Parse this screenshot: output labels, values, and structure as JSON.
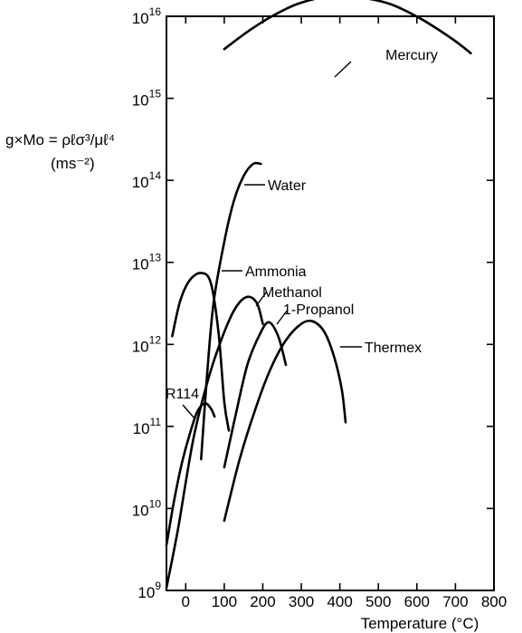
{
  "chart_data": {
    "type": "line",
    "xlabel": "Temperature (°C)",
    "ylabel_line1": "g×Mo = ρℓσ³/μℓ⁴",
    "ylabel_line2": "(ms⁻²)",
    "x_ticks": [
      "0",
      "100",
      "200",
      "300",
      "400",
      "500",
      "600",
      "700",
      "800"
    ],
    "y_ticks": [
      {
        "base": "10",
        "exp": "9"
      },
      {
        "base": "10",
        "exp": "10"
      },
      {
        "base": "10",
        "exp": "11"
      },
      {
        "base": "10",
        "exp": "12"
      },
      {
        "base": "10",
        "exp": "13"
      },
      {
        "base": "10",
        "exp": "14"
      },
      {
        "base": "10",
        "exp": "15"
      },
      {
        "base": "10",
        "exp": "16"
      }
    ],
    "xlim": [
      -50,
      800
    ],
    "ylim_log10": [
      9,
      16
    ],
    "y_scale": "log",
    "grid": false,
    "legend": "none (curves labeled directly)",
    "series": [
      {
        "name": "Mercury",
        "points": [
          [
            100,
            15.6
          ],
          [
            160,
            15.81
          ],
          [
            220,
            15.99
          ],
          [
            290,
            16.15
          ],
          [
            370,
            16.24
          ],
          [
            450,
            16.23
          ],
          [
            530,
            16.15
          ],
          [
            610,
            15.97
          ],
          [
            690,
            15.73
          ],
          [
            740,
            15.55
          ]
        ]
      },
      {
        "name": "Water",
        "points": [
          [
            40,
            10.6
          ],
          [
            55,
            11.6
          ],
          [
            72,
            12.5
          ],
          [
            100,
            13.25
          ],
          [
            125,
            13.75
          ],
          [
            150,
            14.05
          ],
          [
            175,
            14.2
          ],
          [
            195,
            14.2
          ]
        ]
      },
      {
        "name": "Ammonia",
        "points": [
          [
            -35,
            12.1
          ],
          [
            -15,
            12.52
          ],
          [
            10,
            12.78
          ],
          [
            40,
            12.87
          ],
          [
            65,
            12.75
          ],
          [
            85,
            12.15
          ],
          [
            100,
            11.3
          ],
          [
            112,
            10.95
          ]
        ]
      },
      {
        "name": "Methanol",
        "points": [
          [
            -50,
            9.03
          ],
          [
            -20,
            9.75
          ],
          [
            20,
            10.85
          ],
          [
            60,
            11.6
          ],
          [
            100,
            12.15
          ],
          [
            130,
            12.45
          ],
          [
            160,
            12.58
          ],
          [
            185,
            12.5
          ],
          [
            200,
            12.25
          ]
        ]
      },
      {
        "name": "1-Propanol",
        "points": [
          [
            100,
            10.5
          ],
          [
            130,
            11.15
          ],
          [
            160,
            11.75
          ],
          [
            190,
            12.1
          ],
          [
            215,
            12.27
          ],
          [
            240,
            12.1
          ],
          [
            260,
            11.75
          ]
        ]
      },
      {
        "name": "Thermex",
        "points": [
          [
            100,
            9.85
          ],
          [
            140,
            10.6
          ],
          [
            180,
            11.2
          ],
          [
            220,
            11.7
          ],
          [
            260,
            12.05
          ],
          [
            300,
            12.25
          ],
          [
            330,
            12.28
          ],
          [
            360,
            12.15
          ],
          [
            385,
            11.85
          ],
          [
            405,
            11.45
          ],
          [
            415,
            11.05
          ]
        ]
      },
      {
        "name": "R114",
        "points": [
          [
            -50,
            9.55
          ],
          [
            -30,
            10.1
          ],
          [
            -10,
            10.55
          ],
          [
            10,
            10.9
          ],
          [
            30,
            11.18
          ],
          [
            50,
            11.28
          ],
          [
            65,
            11.22
          ],
          [
            75,
            11.12
          ]
        ]
      }
    ],
    "annotations": [
      {
        "text": "Mercury",
        "series": "Mercury"
      },
      {
        "text": "Water",
        "series": "Water"
      },
      {
        "text": "Ammonia",
        "series": "Ammonia"
      },
      {
        "text": "Methanol",
        "series": "Methanol"
      },
      {
        "text": "1-Propanol",
        "series": "1-Propanol"
      },
      {
        "text": "Thermex",
        "series": "Thermex"
      },
      {
        "text": "R114",
        "series": "R114"
      }
    ]
  }
}
